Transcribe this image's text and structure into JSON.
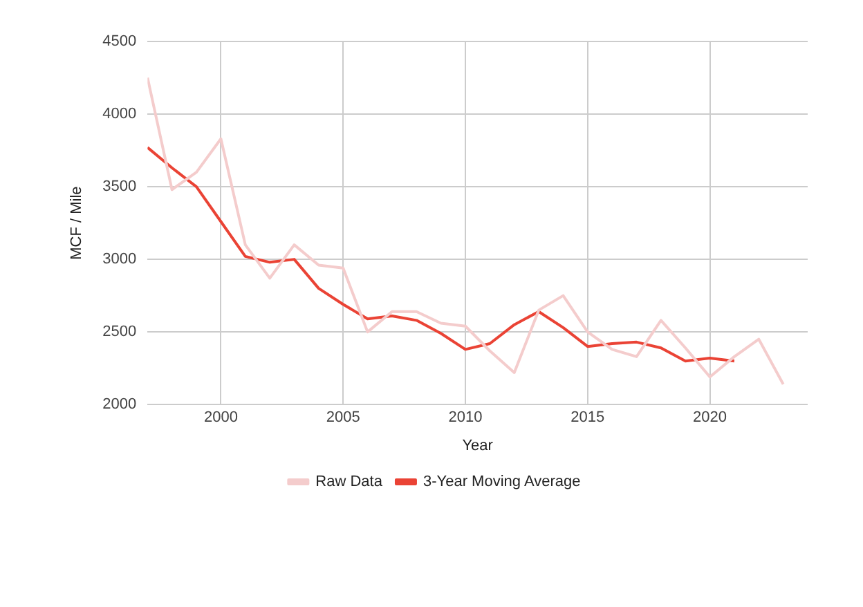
{
  "chart_data": {
    "type": "line",
    "xlabel": "Year",
    "ylabel": "MCF / Mile",
    "x": [
      1997,
      1998,
      1999,
      2000,
      2001,
      2002,
      2003,
      2004,
      2005,
      2006,
      2007,
      2008,
      2009,
      2010,
      2011,
      2012,
      2013,
      2014,
      2015,
      2016,
      2017,
      2018,
      2019,
      2020,
      2021,
      2022,
      2023
    ],
    "series": [
      {
        "name": "Raw Data",
        "color": "#f4cccc",
        "values": [
          4250,
          3480,
          3600,
          3830,
          3100,
          2870,
          3100,
          2960,
          2940,
          2500,
          2640,
          2640,
          2560,
          2540,
          2370,
          2220,
          2650,
          2750,
          2500,
          2380,
          2330,
          2580,
          2390,
          2190,
          2330,
          2450,
          2140
        ]
      },
      {
        "name": "3-Year Moving Average",
        "color": "#ea4335",
        "values": [
          3770,
          3630,
          3500,
          3260,
          3020,
          2980,
          3000,
          2800,
          2690,
          2590,
          2610,
          2580,
          2490,
          2380,
          2420,
          2550,
          2640,
          2530,
          2400,
          2420,
          2430,
          2390,
          2300,
          2320,
          2300,
          null,
          null
        ]
      }
    ],
    "xlim": [
      1997,
      2024
    ],
    "xticks": [
      2000,
      2005,
      2010,
      2015,
      2020
    ],
    "ylim": [
      2000,
      4500
    ],
    "yticks": [
      2000,
      2500,
      3000,
      3500,
      4000,
      4500
    ],
    "grid": true,
    "legend": "bottom",
    "marker": "none",
    "line_style": "solid"
  }
}
